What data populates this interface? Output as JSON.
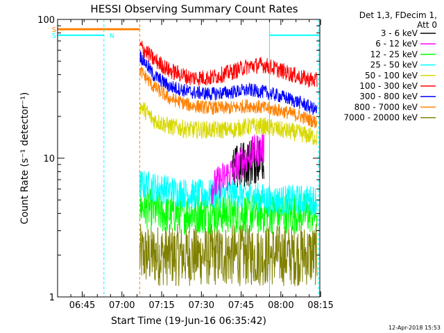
{
  "chart_data": {
    "type": "line",
    "title": "HESSI Observing Summary Count Rates",
    "xlabel": "Start Time (19-Jun-16 06:35:42)",
    "ylabel": "Count Rate (s⁻¹ detector⁻¹)",
    "yscale": "log",
    "ylim": [
      1,
      100
    ],
    "xlim_minutes": [
      0,
      99
    ],
    "x_tick_labels": [
      "06:45",
      "07:00",
      "07:15",
      "07:30",
      "07:45",
      "08:00",
      "08:15"
    ],
    "x_tick_minutes": [
      9.3,
      24.3,
      39.3,
      54.3,
      69.3,
      84.3,
      99.3
    ],
    "y_tick_labels": [
      "1",
      "10",
      "100"
    ],
    "y_tick_values": [
      1,
      10,
      100
    ],
    "legend": {
      "placement": "right",
      "header": [
        "Det 1,3, FDecim 1,",
        "Att 0"
      ],
      "entries": [
        {
          "label": "3 - 6 keV",
          "color": "#000000"
        },
        {
          "label": "6 - 12 keV",
          "color": "#ff00ff"
        },
        {
          "label": "12 - 25 keV",
          "color": "#00ff00"
        },
        {
          "label": "25 - 50 keV",
          "color": "#00ffff"
        },
        {
          "label": "50 - 100 keV",
          "color": "#d8d800"
        },
        {
          "label": "100 - 300 keV",
          "color": "#ff0000"
        },
        {
          "label": "300 - 800 keV",
          "color": "#0000ff"
        },
        {
          "label": "800 - 7000 keV",
          "color": "#ff8000"
        },
        {
          "label": "7000 - 20000 keV",
          "color": "#808000"
        }
      ]
    },
    "data_gap_minutes": [
      0,
      31
    ],
    "data_start_minute": 31,
    "data_end_minute": 98.5,
    "series": [
      {
        "name": "100 - 300 keV",
        "color": "#ff0000",
        "minutes": [
          31,
          36,
          42,
          50,
          58,
          66,
          72,
          78,
          84,
          92,
          98
        ],
        "values": [
          65,
          52,
          43,
          38,
          38,
          42,
          46,
          47,
          43,
          38,
          36
        ]
      },
      {
        "name": "300 - 800 keV",
        "color": "#0000ff",
        "minutes": [
          31,
          36,
          42,
          50,
          58,
          66,
          72,
          78,
          84,
          92,
          98
        ],
        "values": [
          55,
          40,
          33,
          30,
          29,
          30,
          31,
          30,
          28,
          25,
          22
        ]
      },
      {
        "name": "800 - 7000 keV",
        "color": "#ff8000",
        "minutes": [
          31,
          36,
          42,
          50,
          58,
          66,
          72,
          78,
          84,
          92,
          98
        ],
        "values": [
          43,
          33,
          27,
          24,
          23,
          23,
          24,
          23,
          22,
          20,
          18
        ]
      },
      {
        "name": "50 - 100 keV",
        "color": "#d8d800",
        "minutes": [
          31,
          36,
          42,
          50,
          58,
          66,
          72,
          78,
          84,
          92,
          98
        ],
        "values": [
          24,
          19,
          17,
          16,
          16,
          16,
          17,
          17,
          16,
          15,
          14
        ]
      },
      {
        "name": "6 - 12 keV",
        "color": "#ff00ff",
        "minutes": [
          58,
          62,
          66,
          70,
          74,
          78
        ],
        "values": [
          6,
          7,
          8,
          9.5,
          11,
          12
        ]
      },
      {
        "name": "3 - 6 keV",
        "color": "#000000",
        "minutes": [
          66,
          70,
          74,
          78
        ],
        "values": [
          8,
          9,
          9.5,
          10
        ]
      },
      {
        "name": "25 - 50 keV",
        "color": "#00ffff",
        "minutes": [
          31,
          40,
          50,
          60,
          70,
          80,
          90,
          98
        ],
        "values": [
          6.5,
          6,
          5.5,
          5.5,
          5.5,
          5,
          5,
          5
        ]
      },
      {
        "name": "12 - 25 keV",
        "color": "#00ff00",
        "minutes": [
          31,
          40,
          50,
          60,
          70,
          80,
          90,
          98
        ],
        "values": [
          4.5,
          4,
          4,
          4,
          4,
          4,
          4,
          4
        ]
      },
      {
        "name": "7000 - 20000 keV",
        "color": "#808000",
        "minutes": [
          31,
          40,
          50,
          60,
          70,
          80,
          90,
          98
        ],
        "values": [
          2,
          2,
          2,
          2,
          2,
          2,
          2,
          2
        ]
      }
    ],
    "attenuator_state": {
      "label": "S",
      "color": "#ff8000",
      "value": 85,
      "minutes": [
        0,
        31
      ]
    },
    "saa_flag": {
      "label": "N",
      "color": "#00ffff",
      "value": 77,
      "segments": [
        [
          0,
          17.5
        ],
        [
          80,
          98.5
        ]
      ]
    },
    "vertical_markers": [
      {
        "color": "#00ffff",
        "minute": 17.5,
        "style": "dashed"
      },
      {
        "color": "#ff8000",
        "minute": 31,
        "style": "dashed"
      },
      {
        "color": "#00ffff",
        "minute": 80,
        "style": "solid"
      },
      {
        "color": "#00ffff",
        "minute": 98.5,
        "style": "dashed"
      }
    ]
  },
  "footer": {
    "date_stamp": "12-Apr-2018 15:53"
  }
}
